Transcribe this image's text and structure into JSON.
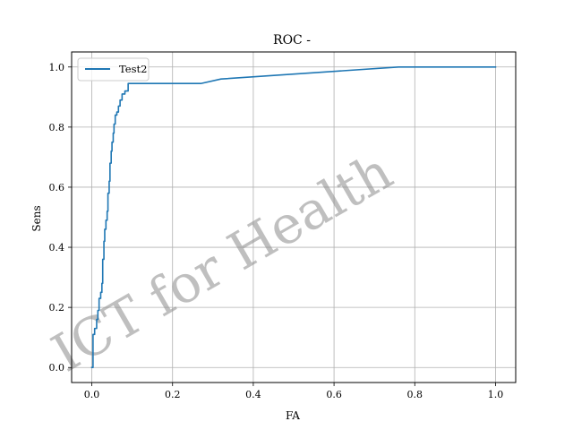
{
  "chart_data": {
    "type": "line",
    "title": "ROC -",
    "xlabel": "FA",
    "ylabel": "Sens",
    "xlim": [
      -0.05,
      1.05
    ],
    "ylim": [
      -0.05,
      1.05
    ],
    "xticks": [
      0.0,
      0.2,
      0.4,
      0.6,
      0.8,
      1.0
    ],
    "yticks": [
      0.0,
      0.2,
      0.4,
      0.6,
      0.8,
      1.0
    ],
    "xtick_labels": [
      "0.0",
      "0.2",
      "0.4",
      "0.6",
      "0.8",
      "1.0"
    ],
    "ytick_labels": [
      "0.0",
      "0.2",
      "0.4",
      "0.6",
      "0.8",
      "1.0"
    ],
    "grid": true,
    "legend_position": "top-left",
    "watermark": "ICT for Health",
    "series": [
      {
        "name": "Test2",
        "color": "#1f77b4",
        "x": [
          0.0,
          0.003,
          0.003,
          0.007,
          0.007,
          0.012,
          0.012,
          0.015,
          0.015,
          0.018,
          0.018,
          0.022,
          0.022,
          0.025,
          0.025,
          0.027,
          0.027,
          0.03,
          0.03,
          0.032,
          0.032,
          0.035,
          0.035,
          0.038,
          0.038,
          0.04,
          0.04,
          0.043,
          0.043,
          0.045,
          0.045,
          0.048,
          0.048,
          0.05,
          0.05,
          0.053,
          0.053,
          0.055,
          0.055,
          0.058,
          0.058,
          0.062,
          0.062,
          0.066,
          0.066,
          0.07,
          0.07,
          0.075,
          0.075,
          0.082,
          0.082,
          0.09,
          0.09,
          0.27,
          0.32,
          0.76,
          1.0
        ],
        "y": [
          0.0,
          0.0,
          0.11,
          0.11,
          0.13,
          0.13,
          0.16,
          0.16,
          0.19,
          0.19,
          0.23,
          0.23,
          0.25,
          0.25,
          0.28,
          0.28,
          0.36,
          0.36,
          0.42,
          0.42,
          0.46,
          0.46,
          0.49,
          0.49,
          0.52,
          0.52,
          0.58,
          0.58,
          0.62,
          0.62,
          0.68,
          0.68,
          0.72,
          0.72,
          0.75,
          0.75,
          0.78,
          0.78,
          0.81,
          0.81,
          0.84,
          0.84,
          0.85,
          0.85,
          0.87,
          0.87,
          0.89,
          0.89,
          0.91,
          0.91,
          0.92,
          0.92,
          0.945,
          0.945,
          0.96,
          1.0,
          1.0
        ]
      }
    ]
  }
}
